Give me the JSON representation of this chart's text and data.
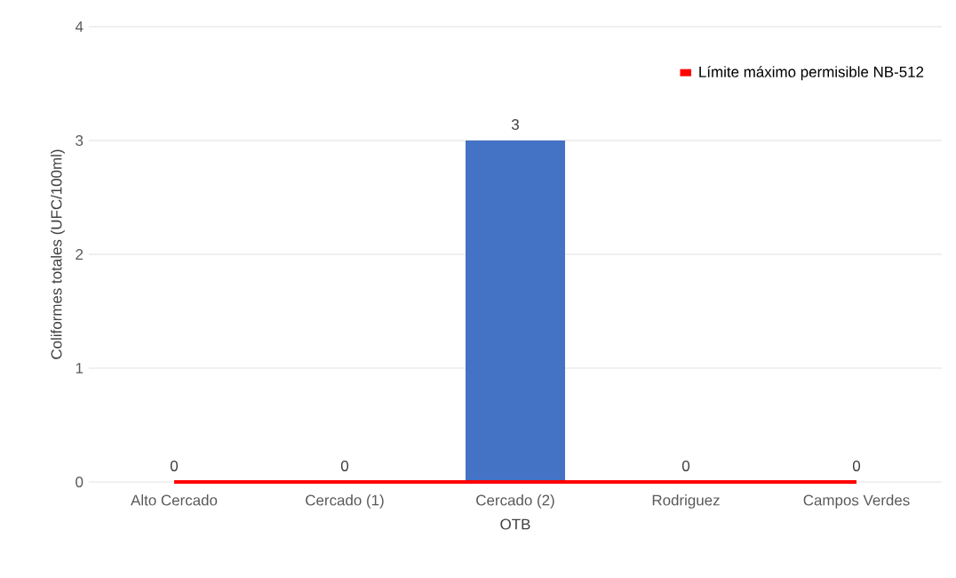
{
  "chart_data": {
    "type": "bar",
    "categories": [
      "Alto Cercado",
      "Cercado (1)",
      "Cercado (2)",
      "Rodriguez",
      "Campos Verdes"
    ],
    "series": [
      {
        "values": [
          0,
          0,
          3,
          0,
          0
        ],
        "value_labels": [
          "0",
          "0",
          "3",
          "0",
          "0"
        ],
        "color": "#4472c4"
      },
      {
        "type": "line",
        "name": "Límite máximo permisible NB-512",
        "values": [
          0,
          0,
          0,
          0,
          0
        ],
        "color": "#ff0000"
      }
    ],
    "xlabel": "OTB",
    "ylabel": "Coliformes totales (UFC/100ml)",
    "ylim": [
      0,
      4
    ],
    "yticks": [
      0,
      1,
      2,
      3,
      4
    ],
    "grid": "y",
    "legend": "top right",
    "marker": "none"
  }
}
